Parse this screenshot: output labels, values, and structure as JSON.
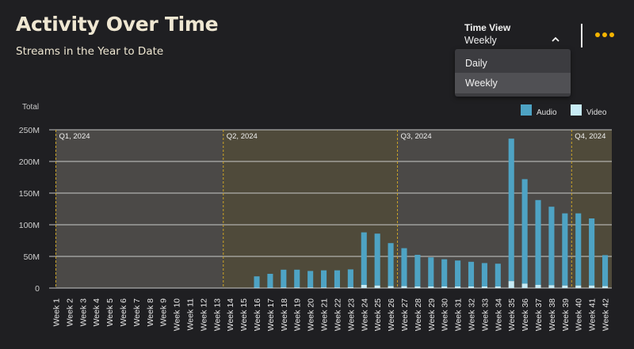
{
  "header": {
    "title": "Activity Over Time",
    "subtitle": "Streams in the Year to Date"
  },
  "time_view": {
    "label": "Time View",
    "selected": "Weekly",
    "options": [
      "Daily",
      "Weekly"
    ],
    "chevron_icon": "chevron-up-icon"
  },
  "more_icon": "more-horizontal-icon",
  "accent_color": "#f4b400",
  "chart_data": {
    "type": "bar",
    "ylabel": "Total",
    "ylim": [
      0,
      250000000
    ],
    "yticks": [
      0,
      50000000,
      100000000,
      150000000,
      200000000,
      250000000
    ],
    "ytick_labels": [
      "0",
      "50M",
      "100M",
      "150M",
      "200M",
      "250M"
    ],
    "stacked": true,
    "legend_position": "top-right",
    "categories": [
      "Week 1",
      "Week 2",
      "Week 3",
      "Week 4",
      "Week 5",
      "Week 6",
      "Week 7",
      "Week 8",
      "Week 9",
      "Week 10",
      "Week 11",
      "Week 12",
      "Week 13",
      "Week 14",
      "Week 15",
      "Week 16",
      "Week 17",
      "Week 18",
      "Week 19",
      "Week 20",
      "Week 21",
      "Week 22",
      "Week 23",
      "Week 24",
      "Week 25",
      "Week 26",
      "Week 27",
      "Week 28",
      "Week 29",
      "Week 30",
      "Week 31",
      "Week 32",
      "Week 33",
      "Week 34",
      "Week 35",
      "Week 36",
      "Week 37",
      "Week 38",
      "Week 39",
      "Week 40",
      "Week 41",
      "Week 42"
    ],
    "series": [
      {
        "name": "Audio",
        "color": "#4ea3c4",
        "values": [
          0,
          0,
          0,
          0,
          0,
          0,
          0,
          0,
          0,
          0,
          0,
          0,
          0,
          0,
          0,
          18000000,
          22000000,
          28000000,
          28000000,
          26000000,
          27000000,
          27000000,
          28000000,
          83000000,
          82000000,
          68000000,
          60000000,
          50000000,
          46000000,
          43000000,
          41000000,
          39000000,
          37000000,
          36000000,
          225000000,
          165000000,
          134000000,
          124000000,
          114000000,
          114000000,
          106000000,
          49000000
        ]
      },
      {
        "name": "Video",
        "color": "#c8ecf6",
        "values": [
          0,
          0,
          0,
          0,
          0,
          0,
          0,
          0,
          0,
          0,
          0,
          0,
          0,
          0,
          0,
          500000,
          500000,
          1000000,
          1000000,
          1000000,
          1000000,
          1000000,
          1500000,
          5000000,
          4000000,
          3000000,
          3000000,
          2500000,
          2500000,
          2500000,
          2500000,
          2500000,
          2500000,
          2500000,
          11000000,
          7000000,
          5000000,
          4500000,
          4000000,
          4000000,
          4000000,
          3000000
        ]
      }
    ],
    "quarters": [
      {
        "label": "Q1, 2024",
        "start": 1,
        "end": 13,
        "color": "#4b4947"
      },
      {
        "label": "Q2, 2024",
        "start": 14,
        "end": 26,
        "color": "#4f4a3a"
      },
      {
        "label": "Q3, 2024",
        "start": 27,
        "end": 39,
        "color": "#4b4947"
      },
      {
        "label": "Q4, 2024",
        "start": 40,
        "end": 42,
        "color": "#4f4a3a"
      }
    ]
  }
}
